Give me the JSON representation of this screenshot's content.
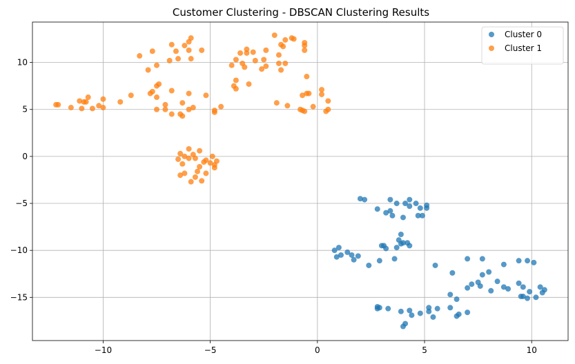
{
  "chart_data": {
    "type": "scatter",
    "title": "Customer Clustering - DBSCAN Clustering Results",
    "xlabel": "",
    "ylabel": "",
    "xlim": [
      -13.3,
      11.7
    ],
    "ylim": [
      -19.6,
      14.3
    ],
    "xticks": [
      -10,
      -5,
      0,
      5,
      10
    ],
    "yticks": [
      -15,
      -10,
      -5,
      0,
      5,
      10
    ],
    "xtick_labels": [
      "−10",
      "−5",
      "0",
      "5",
      "10"
    ],
    "ytick_labels": [
      "−15",
      "−10",
      "−5",
      "0",
      "5",
      "10"
    ],
    "grid": true,
    "legend": "top-right",
    "series": [
      {
        "name": "Cluster 0",
        "color": "#1f77b4",
        "points": [
          [
            2.0,
            -4.5
          ],
          [
            2.2,
            -4.6
          ],
          [
            3.4,
            -4.6
          ],
          [
            4.3,
            -4.6
          ],
          [
            3.7,
            -5.0
          ],
          [
            4.1,
            -5.0
          ],
          [
            4.6,
            -5.0
          ],
          [
            4.8,
            -5.5
          ],
          [
            5.1,
            -5.2
          ],
          [
            5.1,
            -5.5
          ],
          [
            4.3,
            -5.3
          ],
          [
            2.8,
            -5.6
          ],
          [
            3.2,
            -6.0
          ],
          [
            3.4,
            -5.8
          ],
          [
            3.5,
            -6.3
          ],
          [
            4.0,
            -6.5
          ],
          [
            4.7,
            -6.3
          ],
          [
            4.9,
            -6.3
          ],
          [
            3.9,
            -8.3
          ],
          [
            3.8,
            -8.9
          ],
          [
            3.9,
            -9.3
          ],
          [
            4.0,
            -9.2
          ],
          [
            3.7,
            -9.7
          ],
          [
            4.2,
            -9.2
          ],
          [
            4.3,
            -9.5
          ],
          [
            3.0,
            -9.5
          ],
          [
            3.1,
            -9.5
          ],
          [
            3.2,
            -9.8
          ],
          [
            0.8,
            -10.0
          ],
          [
            1.0,
            -9.7
          ],
          [
            1.1,
            -10.5
          ],
          [
            0.9,
            -10.7
          ],
          [
            1.4,
            -10.2
          ],
          [
            1.6,
            -10.5
          ],
          [
            1.7,
            -11.0
          ],
          [
            1.9,
            -10.6
          ],
          [
            2.4,
            -11.6
          ],
          [
            2.9,
            -11.1
          ],
          [
            3.6,
            -10.9
          ],
          [
            5.5,
            -11.6
          ],
          [
            6.3,
            -12.4
          ],
          [
            7.0,
            -10.9
          ],
          [
            7.7,
            -10.9
          ],
          [
            8.7,
            -11.5
          ],
          [
            9.4,
            -11.1
          ],
          [
            9.8,
            -11.1
          ],
          [
            10.1,
            -11.3
          ],
          [
            7.0,
            -14.0
          ],
          [
            7.2,
            -13.6
          ],
          [
            7.5,
            -13.4
          ],
          [
            7.6,
            -13.8
          ],
          [
            7.7,
            -12.6
          ],
          [
            8.0,
            -12.3
          ],
          [
            8.1,
            -14.3
          ],
          [
            8.4,
            -13.3
          ],
          [
            8.7,
            -13.9
          ],
          [
            8.9,
            -14.1
          ],
          [
            9.4,
            -13.5
          ],
          [
            9.6,
            -13.9
          ],
          [
            9.9,
            -14.4
          ],
          [
            9.5,
            -14.9
          ],
          [
            9.6,
            -14.9
          ],
          [
            9.8,
            -15.1
          ],
          [
            10.2,
            -15.0
          ],
          [
            10.4,
            -13.9
          ],
          [
            10.6,
            -14.2
          ],
          [
            10.5,
            -14.5
          ],
          [
            6.2,
            -14.7
          ],
          [
            6.5,
            -15.2
          ],
          [
            6.2,
            -16.1
          ],
          [
            6.5,
            -17.0
          ],
          [
            6.6,
            -16.8
          ],
          [
            7.0,
            -16.6
          ],
          [
            5.6,
            -16.2
          ],
          [
            5.2,
            -16.1
          ],
          [
            5.2,
            -16.5
          ],
          [
            5.4,
            -17.1
          ],
          [
            4.8,
            -16.7
          ],
          [
            4.3,
            -16.4
          ],
          [
            4.4,
            -16.9
          ],
          [
            3.9,
            -16.5
          ],
          [
            4.1,
            -17.8
          ],
          [
            4.0,
            -18.1
          ],
          [
            2.8,
            -16.0
          ],
          [
            2.8,
            -16.2
          ],
          [
            3.3,
            -16.2
          ],
          [
            2.9,
            -16.1
          ]
        ]
      },
      {
        "name": "Cluster 1",
        "color": "#ff7f0e",
        "points": [
          [
            -12.2,
            5.5
          ],
          [
            -12.1,
            5.5
          ],
          [
            -11.5,
            5.2
          ],
          [
            -11.1,
            5.9
          ],
          [
            -11.0,
            5.1
          ],
          [
            -10.9,
            5.8
          ],
          [
            -10.8,
            5.8
          ],
          [
            -10.7,
            6.3
          ],
          [
            -10.5,
            5.1
          ],
          [
            -10.2,
            5.4
          ],
          [
            -10.0,
            6.1
          ],
          [
            -10.0,
            5.2
          ],
          [
            -9.2,
            5.8
          ],
          [
            -8.7,
            6.5
          ],
          [
            -8.3,
            10.7
          ],
          [
            -7.9,
            9.2
          ],
          [
            -7.8,
            6.7
          ],
          [
            -7.7,
            6.9
          ],
          [
            -7.7,
            11.2
          ],
          [
            -7.5,
            7.5
          ],
          [
            -7.4,
            7.7
          ],
          [
            -7.5,
            6.3
          ],
          [
            -7.5,
            5.0
          ],
          [
            -7.5,
            9.7
          ],
          [
            -7.1,
            5.0
          ],
          [
            -7.1,
            5.5
          ],
          [
            -6.8,
            4.5
          ],
          [
            -6.9,
            10.2
          ],
          [
            -6.8,
            11.9
          ],
          [
            -6.8,
            7.0
          ],
          [
            -6.6,
            11.2
          ],
          [
            -6.5,
            10.4
          ],
          [
            -6.4,
            4.5
          ],
          [
            -6.3,
            4.3
          ],
          [
            -6.3,
            5.7
          ],
          [
            -6.2,
            11.8
          ],
          [
            -6.0,
            11.3
          ],
          [
            -6.0,
            12.2
          ],
          [
            -5.9,
            12.6
          ],
          [
            -6.0,
            6.7
          ],
          [
            -6.0,
            5.0
          ],
          [
            -5.8,
            5.2
          ],
          [
            -5.9,
            10.4
          ],
          [
            -5.4,
            11.3
          ],
          [
            -5.2,
            6.5
          ],
          [
            -4.8,
            4.9
          ],
          [
            -4.8,
            4.7
          ],
          [
            -4.5,
            5.3
          ],
          [
            -4.0,
            9.7
          ],
          [
            -3.9,
            7.5
          ],
          [
            -3.8,
            7.2
          ],
          [
            -3.8,
            8.1
          ],
          [
            -3.8,
            10.3
          ],
          [
            -3.6,
            11.0
          ],
          [
            -3.5,
            9.9
          ],
          [
            -3.3,
            11.0
          ],
          [
            -3.3,
            11.4
          ],
          [
            -3.4,
            9.5
          ],
          [
            -3.2,
            7.7
          ],
          [
            -3.0,
            11.1
          ],
          [
            -2.9,
            10.2
          ],
          [
            -2.6,
            9.3
          ],
          [
            -2.5,
            10.3
          ],
          [
            -2.4,
            9.6
          ],
          [
            -2.4,
            11.3
          ],
          [
            -2.0,
            12.9
          ],
          [
            -1.9,
            5.7
          ],
          [
            -1.8,
            10.8
          ],
          [
            -1.8,
            9.9
          ],
          [
            -1.7,
            11.9
          ],
          [
            -1.7,
            9.2
          ],
          [
            -1.6,
            11.7
          ],
          [
            -1.5,
            12.4
          ],
          [
            -1.5,
            9.9
          ],
          [
            -1.4,
            5.4
          ],
          [
            -1.2,
            12.6
          ],
          [
            -1.1,
            12.5
          ],
          [
            -0.8,
            5.0
          ],
          [
            -0.7,
            4.9
          ],
          [
            -0.6,
            4.8
          ],
          [
            -0.7,
            6.5
          ],
          [
            -0.5,
            6.7
          ],
          [
            -0.4,
            6.7
          ],
          [
            -0.6,
            11.3
          ],
          [
            -0.6,
            11.8
          ],
          [
            -0.6,
            12.1
          ],
          [
            -0.5,
            8.5
          ],
          [
            -0.2,
            5.3
          ],
          [
            0.2,
            6.6
          ],
          [
            0.2,
            7.1
          ],
          [
            0.4,
            4.8
          ],
          [
            0.5,
            5.0
          ],
          [
            0.5,
            5.9
          ],
          [
            -6.4,
            0.3
          ],
          [
            -6.5,
            -0.3
          ],
          [
            -6.3,
            -0.8
          ],
          [
            -6.2,
            -0.0
          ],
          [
            -6.2,
            -1.8
          ],
          [
            -6.0,
            0.8
          ],
          [
            -6.0,
            -0.2
          ],
          [
            -5.9,
            -2.7
          ],
          [
            -5.8,
            0.2
          ],
          [
            -5.7,
            -2.2
          ],
          [
            -5.7,
            -0.2
          ],
          [
            -5.6,
            -1.6
          ],
          [
            -5.5,
            0.6
          ],
          [
            -5.5,
            -1.1
          ],
          [
            -5.4,
            -2.6
          ],
          [
            -5.3,
            -0.6
          ],
          [
            -5.2,
            -0.4
          ],
          [
            -5.2,
            -1.8
          ],
          [
            -5.0,
            -0.7
          ],
          [
            -4.9,
            -0.0
          ],
          [
            -4.8,
            -1.2
          ],
          [
            -4.8,
            -0.9
          ],
          [
            -4.7,
            -0.5
          ],
          [
            -6.4,
            -2.0
          ]
        ]
      }
    ]
  }
}
